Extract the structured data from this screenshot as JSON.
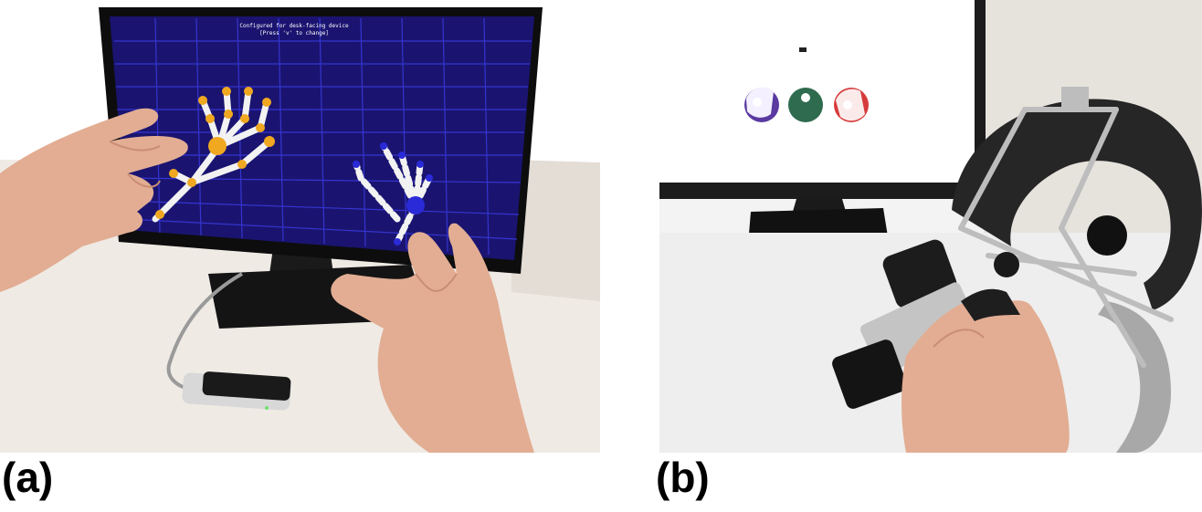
{
  "panels": [
    {
      "id": "a",
      "label": "(a)",
      "screen_text_line1": "Configured for desk-facing device",
      "screen_text_line2": "[Press 'v' to change]"
    },
    {
      "id": "b",
      "label": "(b)"
    }
  ],
  "colors": {
    "screen_bg": "#1a1470",
    "grid_line": "#3a3ae0",
    "virtual_hand_left_joint": "#f0a820",
    "virtual_hand_right_joint": "#2a2ad8",
    "desk": "#efeae4",
    "skin": "#e2ad93",
    "ball_purple": "#5a3aa0",
    "ball_green": "#2f6b4e",
    "ball_red": "#d63a3a"
  }
}
